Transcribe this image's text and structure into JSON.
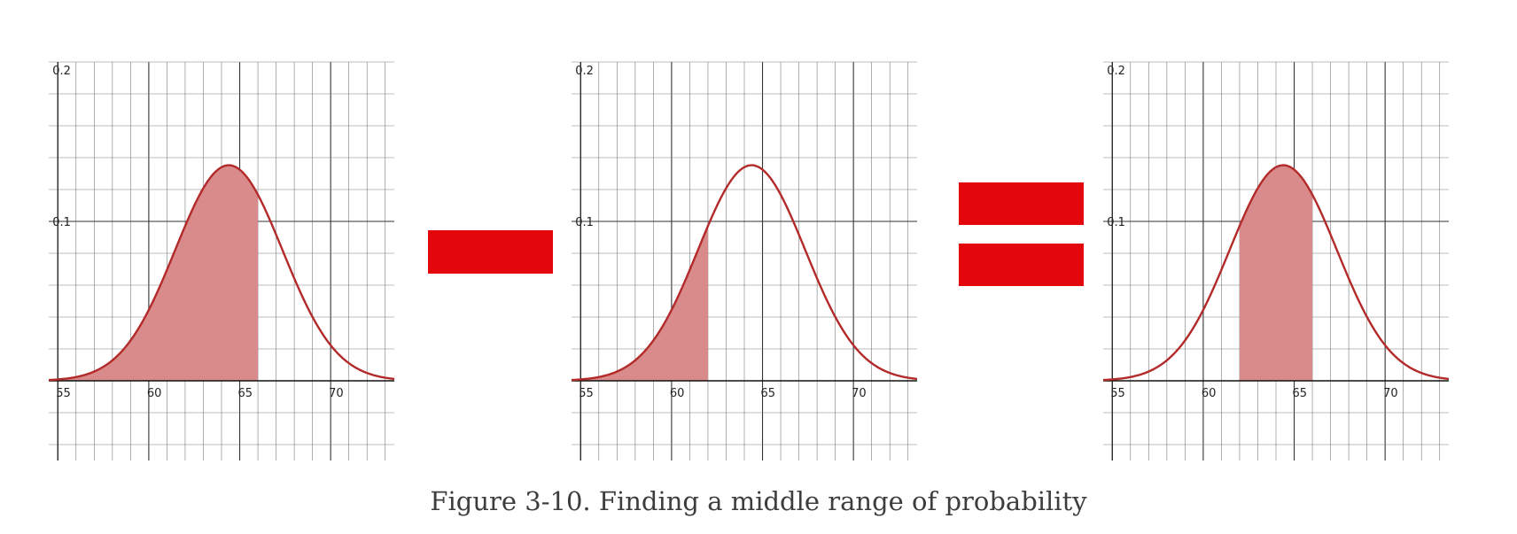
{
  "caption": "Figure 3-10. Finding a middle range of probability",
  "operators": {
    "minus": "minus-sign",
    "equals": "equals-sign"
  },
  "colors": {
    "curve": "#b22a2a",
    "fill": "#d98a8a",
    "operator": "#e3070b",
    "grid": "#7a7a7a"
  },
  "chart_data": [
    {
      "type": "area",
      "title": "",
      "xlabel": "",
      "ylabel": "",
      "xlim": [
        54.5,
        73.5
      ],
      "ylim": [
        -0.05,
        0.2
      ],
      "xticks": [
        55,
        60,
        65,
        70
      ],
      "yticks": [
        0.1,
        0.2
      ],
      "ytick_labels": [
        "0.1",
        "0.2"
      ],
      "grid": true,
      "distribution": {
        "name": "normal",
        "mean": 64.4,
        "sd": 2.95
      },
      "shaded_range": [
        54.5,
        66
      ]
    },
    {
      "type": "area",
      "title": "",
      "xlabel": "",
      "ylabel": "",
      "xlim": [
        54.5,
        73.5
      ],
      "ylim": [
        -0.05,
        0.2
      ],
      "xticks": [
        55,
        60,
        65,
        70
      ],
      "yticks": [
        0.1,
        0.2
      ],
      "ytick_labels": [
        "0.1",
        "0.2"
      ],
      "grid": true,
      "distribution": {
        "name": "normal",
        "mean": 64.4,
        "sd": 2.95
      },
      "shaded_range": [
        54.5,
        62
      ]
    },
    {
      "type": "area",
      "title": "",
      "xlabel": "",
      "ylabel": "",
      "xlim": [
        54.5,
        73.5
      ],
      "ylim": [
        -0.05,
        0.2
      ],
      "xticks": [
        55,
        60,
        65,
        70
      ],
      "yticks": [
        0.1,
        0.2
      ],
      "ytick_labels": [
        "0.1",
        "0.2"
      ],
      "grid": true,
      "distribution": {
        "name": "normal",
        "mean": 64.4,
        "sd": 2.95
      },
      "shaded_range": [
        62,
        66
      ]
    }
  ]
}
